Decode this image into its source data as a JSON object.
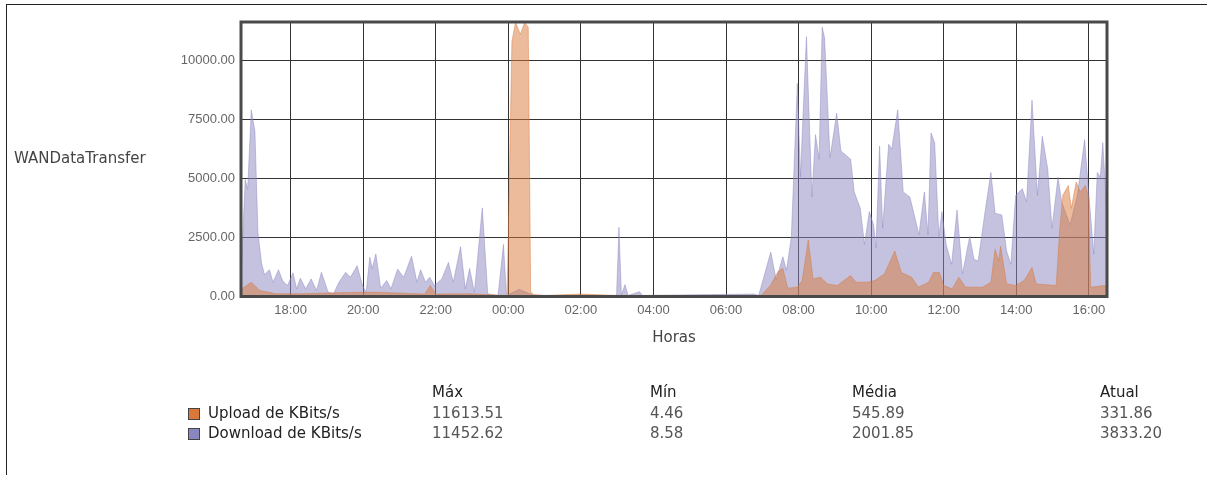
{
  "chart_data": {
    "type": "area",
    "xlabel": "Horas",
    "ylabel": "WANDataTransfer",
    "xlim": [
      "2000-01-01T16:38",
      "2000-01-02T16:30"
    ],
    "xticks": [
      {
        "value": "2000-01-01T18:00",
        "label": "18:00"
      },
      {
        "value": "2000-01-01T20:00",
        "label": "20:00"
      },
      {
        "value": "2000-01-01T22:00",
        "label": "22:00"
      },
      {
        "value": "2000-01-02T00:00",
        "label": "00:00"
      },
      {
        "value": "2000-01-02T02:00",
        "label": "02:00"
      },
      {
        "value": "2000-01-02T04:00",
        "label": "04:00"
      },
      {
        "value": "2000-01-02T06:00",
        "label": "06:00"
      },
      {
        "value": "2000-01-02T08:00",
        "label": "08:00"
      },
      {
        "value": "2000-01-02T10:00",
        "label": "10:00"
      },
      {
        "value": "2000-01-02T12:00",
        "label": "12:00"
      },
      {
        "value": "2000-01-02T14:00",
        "label": "14:00"
      },
      {
        "value": "2000-01-02T16:00",
        "label": "16:00"
      }
    ],
    "ylim": [
      0,
      11620
    ],
    "yticks": [
      {
        "value": 0,
        "label": "0.00"
      },
      {
        "value": 2500,
        "label": "2500.00"
      },
      {
        "value": 5000,
        "label": "5000.00"
      },
      {
        "value": 7500,
        "label": "7500.00"
      },
      {
        "value": 10000,
        "label": "10000.00"
      }
    ],
    "grid": true,
    "legend": "bottom",
    "series": [
      {
        "name": "Upload de KBits/s",
        "color": "#d9783a",
        "x": [
          "2000-01-01T16:39",
          "2000-01-01T16:55",
          "2000-01-01T17:09",
          "2000-01-01T17:36",
          "2000-01-01T18:16",
          "2000-01-01T19:12",
          "2000-01-01T20:18",
          "2000-01-01T21:42",
          "2000-01-01T21:51",
          "2000-01-01T22:00",
          "2000-01-01T22:57",
          "2000-01-01T23:27",
          "2000-01-01T23:58",
          "2000-01-02T00:06",
          "2000-01-02T00:12",
          "2000-01-02T00:20",
          "2000-01-02T00:27",
          "2000-01-02T00:33",
          "2000-01-02T00:37",
          "2000-01-02T00:42",
          "2000-01-02T01:00",
          "2000-01-02T02:00",
          "2000-01-02T03:00",
          "2000-01-02T06:30",
          "2000-01-02T06:58",
          "2000-01-02T07:14",
          "2000-01-02T07:26",
          "2000-01-02T07:34",
          "2000-01-02T07:42",
          "2000-01-02T07:58",
          "2000-01-02T08:06",
          "2000-01-02T08:16",
          "2000-01-02T08:24",
          "2000-01-02T08:36",
          "2000-01-02T08:48",
          "2000-01-02T09:04",
          "2000-01-02T09:26",
          "2000-01-02T09:35",
          "2000-01-02T09:54",
          "2000-01-02T10:06",
          "2000-01-02T10:22",
          "2000-01-02T10:39",
          "2000-01-02T10:50",
          "2000-01-02T11:07",
          "2000-01-02T11:18",
          "2000-01-02T11:35",
          "2000-01-02T11:43",
          "2000-01-02T11:53",
          "2000-01-02T12:00",
          "2000-01-02T12:14",
          "2000-01-02T12:25",
          "2000-01-02T12:36",
          "2000-01-02T13:04",
          "2000-01-02T13:18",
          "2000-01-02T13:25",
          "2000-01-02T13:31",
          "2000-01-02T13:34",
          "2000-01-02T13:44",
          "2000-01-02T13:59",
          "2000-01-02T14:13",
          "2000-01-02T14:26",
          "2000-01-02T14:33",
          "2000-01-02T15:06",
          "2000-01-02T15:12",
          "2000-01-02T15:17",
          "2000-01-02T15:26",
          "2000-01-02T15:31",
          "2000-01-02T15:39",
          "2000-01-02T15:46",
          "2000-01-02T15:54",
          "2000-01-02T15:59",
          "2000-01-02T16:03",
          "2000-01-02T16:25",
          "2000-01-02T16:29"
        ],
        "values": [
          320,
          600,
          250,
          110,
          110,
          150,
          180,
          100,
          460,
          100,
          110,
          70,
          40,
          10800,
          11600,
          11100,
          11600,
          11400,
          200,
          80,
          40,
          100,
          40,
          40,
          40,
          490,
          1050,
          1190,
          350,
          390,
          670,
          2400,
          740,
          810,
          530,
          460,
          880,
          600,
          600,
          670,
          950,
          1920,
          1010,
          810,
          390,
          600,
          1010,
          1010,
          460,
          320,
          810,
          390,
          390,
          600,
          1990,
          1500,
          2130,
          530,
          460,
          670,
          1220,
          530,
          460,
          2890,
          4280,
          4700,
          3730,
          4840,
          4420,
          4700,
          4280,
          390,
          460,
          420
        ]
      },
      {
        "name": "Download de KBits/s",
        "color": "#8a86c0",
        "x": [
          "2000-01-01T16:39",
          "2000-01-01T16:45",
          "2000-01-01T16:49",
          "2000-01-01T16:55",
          "2000-01-01T17:01",
          "2000-01-01T17:06",
          "2000-01-01T17:12",
          "2000-01-01T17:17",
          "2000-01-01T17:25",
          "2000-01-01T17:31",
          "2000-01-01T17:40",
          "2000-01-01T17:47",
          "2000-01-01T17:55",
          "2000-01-01T18:04",
          "2000-01-01T18:10",
          "2000-01-01T18:16",
          "2000-01-01T18:25",
          "2000-01-01T18:34",
          "2000-01-01T18:43",
          "2000-01-01T18:51",
          "2000-01-01T19:02",
          "2000-01-01T19:11",
          "2000-01-01T19:20",
          "2000-01-01T19:31",
          "2000-01-01T19:39",
          "2000-01-01T19:50",
          "2000-01-01T19:59",
          "2000-01-01T20:05",
          "2000-01-01T20:11",
          "2000-01-01T20:15",
          "2000-01-01T20:21",
          "2000-01-01T20:29",
          "2000-01-01T20:39",
          "2000-01-01T20:46",
          "2000-01-01T20:57",
          "2000-01-01T21:07",
          "2000-01-01T21:20",
          "2000-01-01T21:29",
          "2000-01-01T21:35",
          "2000-01-01T21:43",
          "2000-01-01T21:50",
          "2000-01-01T21:58",
          "2000-01-01T22:10",
          "2000-01-01T22:21",
          "2000-01-01T22:29",
          "2000-01-01T22:41",
          "2000-01-01T22:49",
          "2000-01-01T22:56",
          "2000-01-01T23:04",
          "2000-01-01T23:17",
          "2000-01-01T23:26",
          "2000-01-01T23:43",
          "2000-01-01T23:52",
          "2000-01-01T23:57",
          "2000-01-02T00:18",
          "2000-01-02T00:42",
          "2000-01-02T02:59",
          "2000-01-02T03:03",
          "2000-01-02T03:07",
          "2000-01-02T03:13",
          "2000-01-02T03:18",
          "2000-01-02T03:37",
          "2000-01-02T03:42",
          "2000-01-02T06:46",
          "2000-01-02T06:54",
          "2000-01-02T07:14",
          "2000-01-02T07:23",
          "2000-01-02T07:34",
          "2000-01-02T07:40",
          "2000-01-02T07:48",
          "2000-01-02T07:58",
          "2000-01-02T08:03",
          "2000-01-02T08:13",
          "2000-01-02T08:22",
          "2000-01-02T08:28",
          "2000-01-02T08:34",
          "2000-01-02T08:39",
          "2000-01-02T08:43",
          "2000-01-02T08:52",
          "2000-01-02T09:03",
          "2000-01-02T09:10",
          "2000-01-02T09:26",
          "2000-01-02T09:32",
          "2000-01-02T09:42",
          "2000-01-02T09:49",
          "2000-01-02T09:57",
          "2000-01-02T10:04",
          "2000-01-02T10:08",
          "2000-01-02T10:14",
          "2000-01-02T10:19",
          "2000-01-02T10:29",
          "2000-01-02T10:34",
          "2000-01-02T10:44",
          "2000-01-02T10:53",
          "2000-01-02T11:04",
          "2000-01-02T11:10",
          "2000-01-02T11:19",
          "2000-01-02T11:28",
          "2000-01-02T11:34",
          "2000-01-02T11:39",
          "2000-01-02T11:45",
          "2000-01-02T11:52",
          "2000-01-02T11:57",
          "2000-01-02T12:04",
          "2000-01-02T12:13",
          "2000-01-02T12:22",
          "2000-01-02T12:31",
          "2000-01-02T12:43",
          "2000-01-02T12:50",
          "2000-01-02T12:57",
          "2000-01-02T13:08",
          "2000-01-02T13:18",
          "2000-01-02T13:25",
          "2000-01-02T13:36",
          "2000-01-02T13:44",
          "2000-01-02T13:51",
          "2000-01-02T13:59",
          "2000-01-02T14:10",
          "2000-01-02T14:17",
          "2000-01-02T14:26",
          "2000-01-02T14:35",
          "2000-01-02T14:43",
          "2000-01-02T14:52",
          "2000-01-02T14:59",
          "2000-01-02T15:09",
          "2000-01-02T15:15",
          "2000-01-02T15:29",
          "2000-01-02T15:41",
          "2000-01-02T15:53",
          "2000-01-02T15:59",
          "2000-01-02T16:08",
          "2000-01-02T16:14",
          "2000-01-02T16:19",
          "2000-01-02T16:23",
          "2000-01-02T16:29"
        ],
        "values": [
          1500,
          4950,
          4540,
          7900,
          7000,
          2710,
          1400,
          920,
          1130,
          600,
          1130,
          650,
          460,
          1000,
          320,
          770,
          320,
          740,
          250,
          1020,
          180,
          110,
          600,
          1020,
          810,
          1300,
          460,
          180,
          1660,
          1180,
          1800,
          350,
          670,
          320,
          1150,
          810,
          1700,
          600,
          1130,
          600,
          810,
          460,
          740,
          1440,
          600,
          2100,
          320,
          1180,
          180,
          3750,
          110,
          40,
          2200,
          40,
          300,
          40,
          40,
          2930,
          50,
          500,
          40,
          200,
          40,
          100,
          40,
          1880,
          700,
          1680,
          1100,
          2500,
          9020,
          5060,
          11000,
          4210,
          6850,
          5810,
          11400,
          10950,
          5880,
          7760,
          6160,
          5810,
          4420,
          3730,
          2200,
          3590,
          3030,
          2060,
          6370,
          2890,
          6440,
          6230,
          7900,
          4420,
          4210,
          3590,
          2610,
          4420,
          2610,
          6920,
          6510,
          2540,
          3590,
          2200,
          1360,
          3660,
          950,
          2540,
          1570,
          1500,
          3520,
          5250,
          3520,
          3450,
          1920,
          1360,
          4280,
          4560,
          4000,
          8310,
          4280,
          6780,
          5390,
          2890,
          5050,
          4000,
          3030,
          4280,
          6640,
          4630,
          1780,
          5250,
          5050,
          6510,
          3860
        ]
      }
    ],
    "annotations": [
      "Máx",
      "Mín",
      "Média",
      "Atual",
      "11613.51",
      "4.46",
      "545.89",
      "331.86",
      "11452.62",
      "8.58",
      "2001.85",
      "3833.20"
    ]
  }
}
